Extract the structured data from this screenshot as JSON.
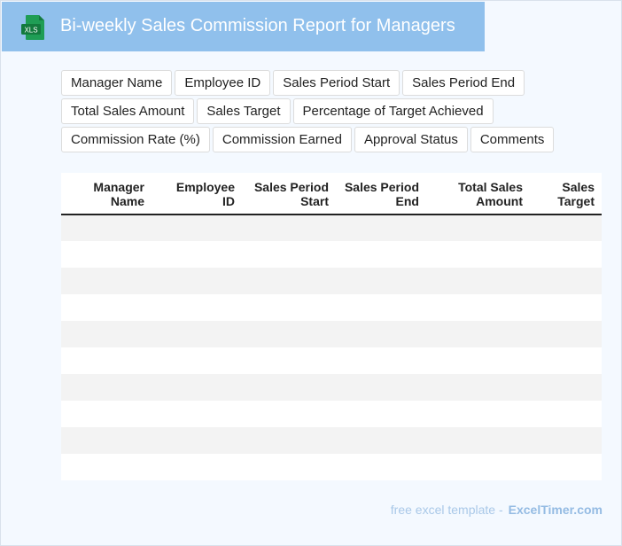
{
  "header": {
    "title": "Bi-weekly Sales Commission Report for Managers",
    "icon": "xls-file-icon",
    "icon_text": "XLS",
    "icon_color": "#1e8a4a"
  },
  "fields": [
    [
      "Manager Name",
      "Employee ID",
      "Sales Period Start",
      "Sales Period End"
    ],
    [
      "Total Sales Amount",
      "Sales Target",
      "Percentage of Target Achieved"
    ],
    [
      "Commission Rate (%)",
      "Commission Earned",
      "Approval Status",
      "Comments"
    ]
  ],
  "table": {
    "columns": [
      [
        "Manager",
        "Name"
      ],
      [
        "Employee",
        "ID"
      ],
      [
        "Sales Period",
        "Start"
      ],
      [
        "Sales Period",
        "End"
      ],
      [
        "Total Sales",
        "Amount"
      ],
      [
        "Sales",
        "Target"
      ]
    ],
    "row_count": 10
  },
  "footer": {
    "text": "free excel template -",
    "brand": "ExcelTimer.com"
  },
  "colors": {
    "header_bg": "#90c0ec",
    "page_bg": "#f4f9ff",
    "stripe": "#f3f3f3"
  }
}
